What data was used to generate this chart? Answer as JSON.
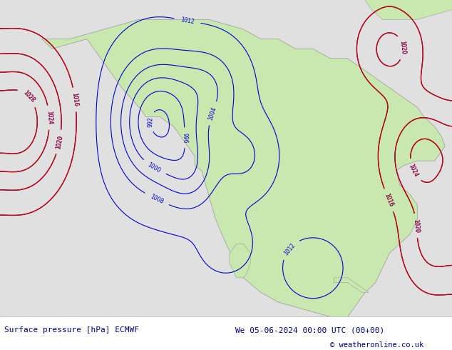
{
  "title_left": "Surface pressure [hPa] ECMWF",
  "title_right": "We 05-06-2024 00:00 UTC (00+00)",
  "copyright": "© weatheronline.co.uk",
  "ocean_color": "#e0e0e0",
  "land_color": "#c8e8b0",
  "footer_bg": "#ffffff",
  "footer_color": "#000080",
  "isobar_blue": "#0000cc",
  "isobar_red": "#cc0000",
  "figsize": [
    6.34,
    4.9
  ],
  "dpi": 100
}
